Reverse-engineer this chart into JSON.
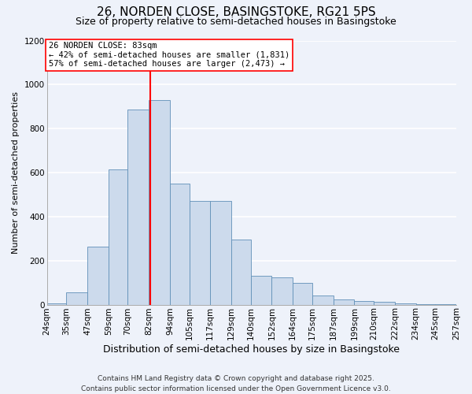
{
  "title": "26, NORDEN CLOSE, BASINGSTOKE, RG21 5PS",
  "subtitle": "Size of property relative to semi-detached houses in Basingstoke",
  "xlabel": "Distribution of semi-detached houses by size in Basingstoke",
  "ylabel": "Number of semi-detached properties",
  "bar_color": "#ccdaec",
  "bar_edge_color": "#6090b8",
  "background_color": "#eef2fa",
  "grid_color": "#ffffff",
  "vline_x": 83,
  "vline_color": "red",
  "annotation_title": "26 NORDEN CLOSE: 83sqm",
  "annotation_line2": "← 42% of semi-detached houses are smaller (1,831)",
  "annotation_line3": "57% of semi-detached houses are larger (2,473) →",
  "bin_edges": [
    24,
    35,
    47,
    59,
    70,
    82,
    94,
    105,
    117,
    129,
    140,
    152,
    164,
    175,
    187,
    199,
    210,
    222,
    234,
    245,
    257
  ],
  "bin_heights": [
    5,
    55,
    265,
    615,
    885,
    930,
    550,
    470,
    470,
    295,
    130,
    125,
    100,
    40,
    22,
    15,
    12,
    5,
    3,
    2
  ],
  "ylim": [
    0,
    1200
  ],
  "yticks": [
    0,
    200,
    400,
    600,
    800,
    1000,
    1200
  ],
  "footer_line1": "Contains HM Land Registry data © Crown copyright and database right 2025.",
  "footer_line2": "Contains public sector information licensed under the Open Government Licence v3.0.",
  "title_fontsize": 11,
  "subtitle_fontsize": 9,
  "xlabel_fontsize": 9,
  "ylabel_fontsize": 8,
  "tick_fontsize": 7.5,
  "footer_fontsize": 6.5,
  "annot_fontsize": 7.5
}
